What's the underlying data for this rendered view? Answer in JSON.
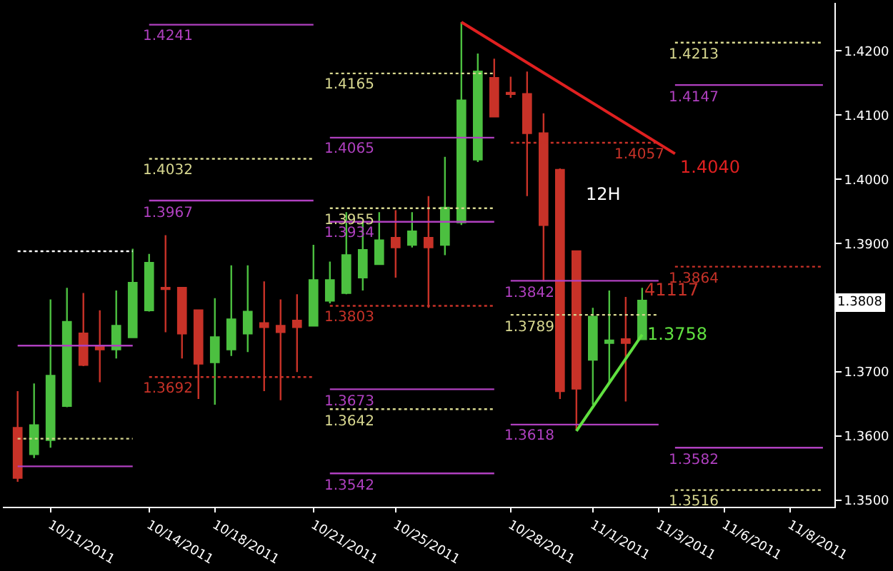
{
  "chart_data": {
    "type": "candlestick",
    "categories": [
      null,
      null,
      "10/11/2011",
      null,
      null,
      null,
      null,
      null,
      "10/14/2011",
      null,
      null,
      null,
      "10/18/2011",
      null,
      null,
      null,
      null,
      null,
      "10/21/2011",
      null,
      null,
      null,
      null,
      "10/25/2011",
      null,
      null,
      null,
      null,
      null,
      null,
      "10/28/2011",
      null,
      null,
      null,
      null,
      "11/1/2011",
      null,
      null,
      null,
      "11/3/2011",
      null,
      null,
      null,
      "11/6/2011",
      null,
      null,
      null,
      "11/8/2011",
      null,
      null
    ],
    "ohlc": [
      [
        1.3613,
        1.367,
        1.3529,
        1.3535
      ],
      [
        1.3572,
        1.3682,
        1.3566,
        1.3617
      ],
      [
        1.3594,
        1.3813,
        1.3582,
        1.3694
      ],
      [
        1.3647,
        1.3831,
        1.3645,
        1.3778
      ],
      [
        1.376,
        1.3823,
        1.3709,
        1.3711
      ],
      [
        1.3739,
        1.3796,
        1.3684,
        1.3735
      ],
      [
        1.3735,
        1.3827,
        1.3721,
        1.3772
      ],
      [
        1.3754,
        1.3892,
        1.3754,
        1.3839
      ],
      [
        1.3796,
        1.3884,
        1.3794,
        1.387
      ],
      [
        1.3831,
        1.3913,
        1.3762,
        1.3829
      ],
      [
        1.3831,
        1.3831,
        1.3721,
        1.376
      ],
      [
        1.3796,
        1.3796,
        1.3658,
        1.3713
      ],
      [
        1.3715,
        1.3815,
        1.3649,
        1.3754
      ],
      [
        1.3735,
        1.3866,
        1.3725,
        1.3782
      ],
      [
        1.376,
        1.3866,
        1.3731,
        1.3794
      ],
      [
        1.3776,
        1.3841,
        1.367,
        1.377
      ],
      [
        1.3772,
        1.3813,
        1.3656,
        1.3762
      ],
      [
        1.378,
        1.3821,
        1.37,
        1.377
      ],
      [
        1.3772,
        1.3898,
        1.3772,
        1.3843
      ],
      [
        1.3811,
        1.3872,
        1.3807,
        1.3843
      ],
      [
        1.3823,
        1.3949,
        1.3821,
        1.3882
      ],
      [
        1.3847,
        1.3935,
        1.3827,
        1.389
      ],
      [
        1.3868,
        1.3949,
        1.3868,
        1.3905
      ],
      [
        1.3909,
        1.3952,
        1.3847,
        1.3894
      ],
      [
        1.3898,
        1.3949,
        1.3894,
        1.3919
      ],
      [
        1.3909,
        1.3974,
        1.38,
        1.3894
      ],
      [
        1.3898,
        1.4035,
        1.3882,
        1.3956
      ],
      [
        1.3933,
        1.4245,
        1.3929,
        1.4123
      ],
      [
        1.4031,
        1.4196,
        1.4027,
        1.4168
      ],
      [
        1.4158,
        1.4188,
        1.4098,
        1.4098
      ],
      [
        1.4135,
        1.416,
        1.4127,
        1.4133
      ],
      [
        1.4133,
        1.4168,
        1.3974,
        1.4072
      ],
      [
        1.4072,
        1.4103,
        1.3841,
        1.3929
      ],
      [
        1.4015,
        1.4017,
        1.3658,
        1.367
      ],
      [
        1.3888,
        1.3888,
        1.3609,
        1.3674
      ],
      [
        1.3719,
        1.38,
        1.3649,
        1.3786
      ],
      [
        1.3745,
        1.3827,
        1.3684,
        1.3749
      ],
      [
        1.3751,
        1.3817,
        1.3654,
        1.3745
      ],
      [
        1.3751,
        1.3831,
        1.3751,
        1.3811
      ],
      null,
      null,
      null,
      null,
      null,
      null,
      null,
      null,
      null,
      null,
      null
    ],
    "colors": [
      "#c83228",
      "#4cc040",
      "#4cc040",
      "#4cc040",
      "#c83228",
      "#c83228",
      "#4cc040",
      "#4cc040",
      "#4cc040",
      "#c83228",
      "#c83228",
      "#c83228",
      "#4cc040",
      "#4cc040",
      "#4cc040",
      "#c83228",
      "#c83228",
      "#c83228",
      "#4cc040",
      "#4cc040",
      "#4cc040",
      "#4cc040",
      "#4cc040",
      "#c83228",
      "#4cc040",
      "#c83228",
      "#4cc040",
      "#4cc040",
      "#4cc040",
      "#c83228",
      "#c83228",
      "#c83228",
      "#c83228",
      "#c83228",
      "#c83228",
      "#4cc040",
      "#4cc040",
      "#c83228",
      "#4cc040",
      null,
      null,
      null,
      null,
      null,
      null,
      null,
      null,
      null,
      null,
      null
    ],
    "series": [
      {
        "type": "line",
        "color": "#ffffff",
        "line_style": "dotted",
        "values": [
          1.3888,
          1.3888,
          1.3888,
          1.3888,
          1.3888,
          1.3888,
          1.3888,
          1.3888,
          null,
          null,
          null,
          null,
          null,
          null,
          null,
          null,
          null,
          null,
          null,
          null,
          null,
          null,
          null,
          null,
          null,
          null,
          null,
          null,
          null,
          null,
          null,
          null,
          null,
          null,
          null,
          null,
          null,
          null,
          null,
          null,
          null,
          null,
          null,
          null,
          null,
          null,
          null,
          null,
          null,
          null
        ]
      },
      {
        "type": "line",
        "color": "#b040c0",
        "line_style": "solid",
        "values": [
          1.3741,
          1.3741,
          1.3741,
          1.3741,
          1.3741,
          1.3741,
          1.3741,
          1.3741,
          null,
          null,
          null,
          null,
          null,
          null,
          null,
          null,
          null,
          null,
          null,
          null,
          null,
          null,
          null,
          null,
          null,
          null,
          null,
          null,
          null,
          null,
          null,
          null,
          null,
          null,
          null,
          null,
          null,
          null,
          null,
          null,
          null,
          null,
          null,
          null,
          null,
          null,
          null,
          null,
          null,
          null
        ]
      },
      {
        "type": "line",
        "color": "#d8d890",
        "line_style": "dotted",
        "values": [
          1.3596,
          1.3596,
          1.3596,
          1.3596,
          1.3596,
          1.3596,
          1.3596,
          1.3596,
          null,
          null,
          null,
          null,
          null,
          null,
          null,
          null,
          null,
          null,
          null,
          null,
          null,
          null,
          null,
          null,
          null,
          null,
          null,
          null,
          null,
          null,
          null,
          null,
          null,
          null,
          null,
          null,
          null,
          null,
          null,
          null,
          null,
          null,
          null,
          null,
          null,
          null,
          null,
          null,
          null,
          null
        ]
      },
      {
        "type": "line",
        "color": "#b040c0",
        "line_style": "solid",
        "values": [
          1.3553,
          1.3553,
          1.3553,
          1.3553,
          1.3553,
          1.3553,
          1.3553,
          1.3553,
          null,
          null,
          null,
          null,
          null,
          null,
          null,
          null,
          null,
          null,
          null,
          null,
          null,
          null,
          null,
          null,
          null,
          null,
          null,
          null,
          null,
          null,
          null,
          null,
          null,
          null,
          null,
          null,
          null,
          null,
          null,
          null,
          null,
          null,
          null,
          null,
          null,
          null,
          null,
          null,
          null,
          null
        ]
      },
      {
        "type": "line",
        "name": "1.4241",
        "color": "#b040c0",
        "line_style": "solid",
        "values": [
          null,
          null,
          null,
          null,
          null,
          null,
          null,
          null,
          1.4241,
          1.4241,
          1.4241,
          1.4241,
          1.4241,
          1.4241,
          1.4241,
          1.4241,
          1.4241,
          1.4241,
          1.4241,
          null,
          null,
          null,
          null,
          null,
          null,
          null,
          null,
          null,
          null,
          null,
          null,
          null,
          null,
          null,
          null,
          null,
          null,
          null,
          null,
          null,
          null,
          null,
          null,
          null,
          null,
          null,
          null,
          null,
          null,
          null
        ]
      },
      {
        "type": "line",
        "name": "1.4032",
        "color": "#d8d890",
        "line_style": "dotted",
        "values": [
          null,
          null,
          null,
          null,
          null,
          null,
          null,
          null,
          1.4032,
          1.4032,
          1.4032,
          1.4032,
          1.4032,
          1.4032,
          1.4032,
          1.4032,
          1.4032,
          1.4032,
          1.4032,
          null,
          null,
          null,
          null,
          null,
          null,
          null,
          null,
          null,
          null,
          null,
          null,
          null,
          null,
          null,
          null,
          null,
          null,
          null,
          null,
          null,
          null,
          null,
          null,
          null,
          null,
          null,
          null,
          null,
          null,
          null
        ]
      },
      {
        "type": "line",
        "name": "1.3967",
        "color": "#b040c0",
        "line_style": "solid",
        "values": [
          null,
          null,
          null,
          null,
          null,
          null,
          null,
          null,
          1.3967,
          1.3967,
          1.3967,
          1.3967,
          1.3967,
          1.3967,
          1.3967,
          1.3967,
          1.3967,
          1.3967,
          1.3967,
          null,
          null,
          null,
          null,
          null,
          null,
          null,
          null,
          null,
          null,
          null,
          null,
          null,
          null,
          null,
          null,
          null,
          null,
          null,
          null,
          null,
          null,
          null,
          null,
          null,
          null,
          null,
          null,
          null,
          null,
          null
        ]
      },
      {
        "type": "line",
        "name": "1.3692",
        "color": "#c83228",
        "line_style": "dotted",
        "values": [
          null,
          null,
          null,
          null,
          null,
          null,
          null,
          null,
          1.3692,
          1.3692,
          1.3692,
          1.3692,
          1.3692,
          1.3692,
          1.3692,
          1.3692,
          1.3692,
          1.3692,
          1.3692,
          null,
          null,
          null,
          null,
          null,
          null,
          null,
          null,
          null,
          null,
          null,
          null,
          null,
          null,
          null,
          null,
          null,
          null,
          null,
          null,
          null,
          null,
          null,
          null,
          null,
          null,
          null,
          null,
          null,
          null,
          null
        ]
      },
      {
        "type": "line",
        "name": "1.4165",
        "color": "#d8d890",
        "line_style": "dotted",
        "values": [
          null,
          null,
          null,
          null,
          null,
          null,
          null,
          null,
          null,
          null,
          null,
          null,
          null,
          null,
          null,
          null,
          null,
          null,
          null,
          1.4165,
          1.4165,
          1.4165,
          1.4165,
          1.4165,
          1.4165,
          1.4165,
          1.4165,
          1.4165,
          1.4165,
          1.4165,
          null,
          null,
          null,
          null,
          null,
          null,
          null,
          null,
          null,
          null,
          null,
          null,
          null,
          null,
          null,
          null,
          null,
          null,
          null,
          null
        ]
      },
      {
        "type": "line",
        "name": "1.4065",
        "color": "#b040c0",
        "line_style": "solid",
        "values": [
          null,
          null,
          null,
          null,
          null,
          null,
          null,
          null,
          null,
          null,
          null,
          null,
          null,
          null,
          null,
          null,
          null,
          null,
          null,
          1.4065,
          1.4065,
          1.4065,
          1.4065,
          1.4065,
          1.4065,
          1.4065,
          1.4065,
          1.4065,
          1.4065,
          1.4065,
          null,
          null,
          null,
          null,
          null,
          null,
          null,
          null,
          null,
          null,
          null,
          null,
          null,
          null,
          null,
          null,
          null,
          null,
          null,
          null
        ]
      },
      {
        "type": "line",
        "name": "1.3955",
        "color": "#d8d890",
        "line_style": "dotted",
        "values": [
          null,
          null,
          null,
          null,
          null,
          null,
          null,
          null,
          null,
          null,
          null,
          null,
          null,
          null,
          null,
          null,
          null,
          null,
          null,
          1.3955,
          1.3955,
          1.3955,
          1.3955,
          1.3955,
          1.3955,
          1.3955,
          1.3955,
          1.3955,
          1.3955,
          1.3955,
          null,
          null,
          null,
          null,
          null,
          null,
          null,
          null,
          null,
          null,
          null,
          null,
          null,
          null,
          null,
          null,
          null,
          null,
          null,
          null
        ]
      },
      {
        "type": "line",
        "name": "1.3934",
        "color": "#b040c0",
        "line_style": "solid",
        "values": [
          null,
          null,
          null,
          null,
          null,
          null,
          null,
          null,
          null,
          null,
          null,
          null,
          null,
          null,
          null,
          null,
          null,
          null,
          null,
          1.3934,
          1.3934,
          1.3934,
          1.3934,
          1.3934,
          1.3934,
          1.3934,
          1.3934,
          1.3934,
          1.3934,
          1.3934,
          null,
          null,
          null,
          null,
          null,
          null,
          null,
          null,
          null,
          null,
          null,
          null,
          null,
          null,
          null,
          null,
          null,
          null,
          null,
          null
        ]
      },
      {
        "type": "line",
        "name": "1.3803",
        "color": "#c83228",
        "line_style": "dotted",
        "values": [
          null,
          null,
          null,
          null,
          null,
          null,
          null,
          null,
          null,
          null,
          null,
          null,
          null,
          null,
          null,
          null,
          null,
          null,
          null,
          1.3803,
          1.3803,
          1.3803,
          1.3803,
          1.3803,
          1.3803,
          1.3803,
          1.3803,
          1.3803,
          1.3803,
          1.3803,
          null,
          null,
          null,
          null,
          null,
          null,
          null,
          null,
          null,
          null,
          null,
          null,
          null,
          null,
          null,
          null,
          null,
          null,
          null,
          null
        ]
      },
      {
        "type": "line",
        "name": "1.3673",
        "color": "#b040c0",
        "line_style": "solid",
        "values": [
          null,
          null,
          null,
          null,
          null,
          null,
          null,
          null,
          null,
          null,
          null,
          null,
          null,
          null,
          null,
          null,
          null,
          null,
          null,
          1.3673,
          1.3673,
          1.3673,
          1.3673,
          1.3673,
          1.3673,
          1.3673,
          1.3673,
          1.3673,
          1.3673,
          1.3673,
          null,
          null,
          null,
          null,
          null,
          null,
          null,
          null,
          null,
          null,
          null,
          null,
          null,
          null,
          null,
          null,
          null,
          null,
          null,
          null
        ]
      },
      {
        "type": "line",
        "name": "1.3642",
        "color": "#d8d890",
        "line_style": "dotted",
        "values": [
          null,
          null,
          null,
          null,
          null,
          null,
          null,
          null,
          null,
          null,
          null,
          null,
          null,
          null,
          null,
          null,
          null,
          null,
          null,
          1.3642,
          1.3642,
          1.3642,
          1.3642,
          1.3642,
          1.3642,
          1.3642,
          1.3642,
          1.3642,
          1.3642,
          1.3642,
          null,
          null,
          null,
          null,
          null,
          null,
          null,
          null,
          null,
          null,
          null,
          null,
          null,
          null,
          null,
          null,
          null,
          null,
          null,
          null
        ]
      },
      {
        "type": "line",
        "name": "1.3542",
        "color": "#b040c0",
        "line_style": "solid",
        "values": [
          null,
          null,
          null,
          null,
          null,
          null,
          null,
          null,
          null,
          null,
          null,
          null,
          null,
          null,
          null,
          null,
          null,
          null,
          null,
          1.3542,
          1.3542,
          1.3542,
          1.3542,
          1.3542,
          1.3542,
          1.3542,
          1.3542,
          1.3542,
          1.3542,
          1.3542,
          null,
          null,
          null,
          null,
          null,
          null,
          null,
          null,
          null,
          null,
          null,
          null,
          null,
          null,
          null,
          null,
          null,
          null,
          null,
          null
        ]
      },
      {
        "type": "line",
        "name": "1.4057",
        "color": "#c83228",
        "line_style": "dotted",
        "values": [
          null,
          null,
          null,
          null,
          null,
          null,
          null,
          null,
          null,
          null,
          null,
          null,
          null,
          null,
          null,
          null,
          null,
          null,
          null,
          null,
          null,
          null,
          null,
          null,
          null,
          null,
          null,
          null,
          null,
          null,
          1.4057,
          1.4057,
          1.4057,
          1.4057,
          1.4057,
          1.4057,
          1.4057,
          1.4057,
          1.4057,
          1.4057,
          null,
          null,
          null,
          null,
          null,
          null,
          null,
          null,
          null,
          null
        ]
      },
      {
        "type": "line",
        "name": "1.3842",
        "color": "#b040c0",
        "line_style": "solid",
        "values": [
          null,
          null,
          null,
          null,
          null,
          null,
          null,
          null,
          null,
          null,
          null,
          null,
          null,
          null,
          null,
          null,
          null,
          null,
          null,
          null,
          null,
          null,
          null,
          null,
          null,
          null,
          null,
          null,
          null,
          null,
          1.3842,
          1.3842,
          1.3842,
          1.3842,
          1.3842,
          1.3842,
          1.3842,
          1.3842,
          1.3842,
          1.3842,
          null,
          null,
          null,
          null,
          null,
          null,
          null,
          null,
          null,
          null
        ]
      },
      {
        "type": "line",
        "name": "1.3789",
        "color": "#d8d890",
        "line_style": "dotted",
        "values": [
          null,
          null,
          null,
          null,
          null,
          null,
          null,
          null,
          null,
          null,
          null,
          null,
          null,
          null,
          null,
          null,
          null,
          null,
          null,
          null,
          null,
          null,
          null,
          null,
          null,
          null,
          null,
          null,
          null,
          null,
          1.3789,
          1.3789,
          1.3789,
          1.3789,
          1.3789,
          1.3789,
          1.3789,
          1.3789,
          1.3789,
          1.3789,
          null,
          null,
          null,
          null,
          null,
          null,
          null,
          null,
          null,
          null
        ]
      },
      {
        "type": "line",
        "name": "1.3618",
        "color": "#b040c0",
        "line_style": "solid",
        "values": [
          null,
          null,
          null,
          null,
          null,
          null,
          null,
          null,
          null,
          null,
          null,
          null,
          null,
          null,
          null,
          null,
          null,
          null,
          null,
          null,
          null,
          null,
          null,
          null,
          null,
          null,
          null,
          null,
          null,
          null,
          1.3618,
          1.3618,
          1.3618,
          1.3618,
          1.3618,
          1.3618,
          1.3618,
          1.3618,
          1.3618,
          1.3618,
          null,
          null,
          null,
          null,
          null,
          null,
          null,
          null,
          null,
          null
        ]
      },
      {
        "type": "line",
        "name": "1.4213",
        "color": "#d8d890",
        "line_style": "dotted",
        "values": [
          null,
          null,
          null,
          null,
          null,
          null,
          null,
          null,
          null,
          null,
          null,
          null,
          null,
          null,
          null,
          null,
          null,
          null,
          null,
          null,
          null,
          null,
          null,
          null,
          null,
          null,
          null,
          null,
          null,
          null,
          null,
          null,
          null,
          null,
          null,
          null,
          null,
          null,
          null,
          null,
          1.4213,
          1.4213,
          1.4213,
          1.4213,
          1.4213,
          1.4213,
          1.4213,
          1.4213,
          1.4213,
          1.4213
        ]
      },
      {
        "type": "line",
        "name": "1.4147",
        "color": "#b040c0",
        "line_style": "solid",
        "values": [
          null,
          null,
          null,
          null,
          null,
          null,
          null,
          null,
          null,
          null,
          null,
          null,
          null,
          null,
          null,
          null,
          null,
          null,
          null,
          null,
          null,
          null,
          null,
          null,
          null,
          null,
          null,
          null,
          null,
          null,
          null,
          null,
          null,
          null,
          null,
          null,
          null,
          null,
          null,
          null,
          1.4147,
          1.4147,
          1.4147,
          1.4147,
          1.4147,
          1.4147,
          1.4147,
          1.4147,
          1.4147,
          1.4147
        ]
      },
      {
        "type": "line",
        "name": "1.3864",
        "color": "#c83228",
        "line_style": "dotted",
        "values": [
          null,
          null,
          null,
          null,
          null,
          null,
          null,
          null,
          null,
          null,
          null,
          null,
          null,
          null,
          null,
          null,
          null,
          null,
          null,
          null,
          null,
          null,
          null,
          null,
          null,
          null,
          null,
          null,
          null,
          null,
          null,
          null,
          null,
          null,
          null,
          null,
          null,
          null,
          null,
          null,
          1.3864,
          1.3864,
          1.3864,
          1.3864,
          1.3864,
          1.3864,
          1.3864,
          1.3864,
          1.3864,
          1.3864
        ]
      },
      {
        "type": "line",
        "name": "1.3582",
        "color": "#b040c0",
        "line_style": "solid",
        "values": [
          null,
          null,
          null,
          null,
          null,
          null,
          null,
          null,
          null,
          null,
          null,
          null,
          null,
          null,
          null,
          null,
          null,
          null,
          null,
          null,
          null,
          null,
          null,
          null,
          null,
          null,
          null,
          null,
          null,
          null,
          null,
          null,
          null,
          null,
          null,
          null,
          null,
          null,
          null,
          null,
          1.3582,
          1.3582,
          1.3582,
          1.3582,
          1.3582,
          1.3582,
          1.3582,
          1.3582,
          1.3582,
          1.3582
        ]
      },
      {
        "type": "line",
        "name": "1.3516",
        "color": "#d8d890",
        "line_style": "dotted",
        "values": [
          null,
          null,
          null,
          null,
          null,
          null,
          null,
          null,
          null,
          null,
          null,
          null,
          null,
          null,
          null,
          null,
          null,
          null,
          null,
          null,
          null,
          null,
          null,
          null,
          null,
          null,
          null,
          null,
          null,
          null,
          null,
          null,
          null,
          null,
          null,
          null,
          null,
          null,
          null,
          null,
          1.3516,
          1.3516,
          1.3516,
          1.3516,
          1.3516,
          1.3516,
          1.3516,
          1.3516,
          1.3516,
          1.3516
        ]
      },
      {
        "type": "line",
        "name": "1.4040",
        "color": "#e02020",
        "line_style": "solid",
        "values": [
          null,
          null,
          null,
          null,
          null,
          null,
          null,
          null,
          null,
          null,
          null,
          null,
          null,
          null,
          null,
          null,
          null,
          null,
          null,
          null,
          null,
          null,
          null,
          null,
          null,
          null,
          null,
          1.4245,
          null,
          null,
          null,
          null,
          null,
          null,
          null,
          null,
          null,
          null,
          null,
          null,
          1.404,
          null,
          null,
          null,
          null,
          null,
          null,
          null,
          null,
          null
        ]
      },
      {
        "type": "line",
        "name": "1.3758",
        "color": "#60e040",
        "line_style": "solid",
        "values": [
          null,
          null,
          null,
          null,
          null,
          null,
          null,
          null,
          null,
          null,
          null,
          null,
          null,
          null,
          null,
          null,
          null,
          null,
          null,
          null,
          null,
          null,
          null,
          null,
          null,
          null,
          null,
          null,
          null,
          null,
          null,
          null,
          null,
          null,
          1.3608,
          null,
          null,
          null,
          1.3758,
          null,
          null,
          null,
          null,
          null,
          null,
          null,
          null,
          null,
          null,
          null
        ]
      }
    ],
    "annotations": [
      "12H",
      "41117",
      {
        "text": "1.3808",
        "y": 1.3808
      }
    ],
    "ylim": [
      1.349,
      1.4275
    ],
    "yticks": [
      {
        "value": 1.35,
        "label": "1.3500"
      },
      {
        "value": 1.36,
        "label": "1.3600"
      },
      {
        "value": 1.37,
        "label": "1.3700"
      },
      {
        "value": 1.38,
        "label": null
      },
      {
        "value": 1.39,
        "label": "1.3900"
      },
      {
        "value": 1.4,
        "label": "1.4000"
      },
      {
        "value": 1.41,
        "label": "1.4100"
      },
      {
        "value": 1.42,
        "label": "1.4200"
      }
    ]
  }
}
